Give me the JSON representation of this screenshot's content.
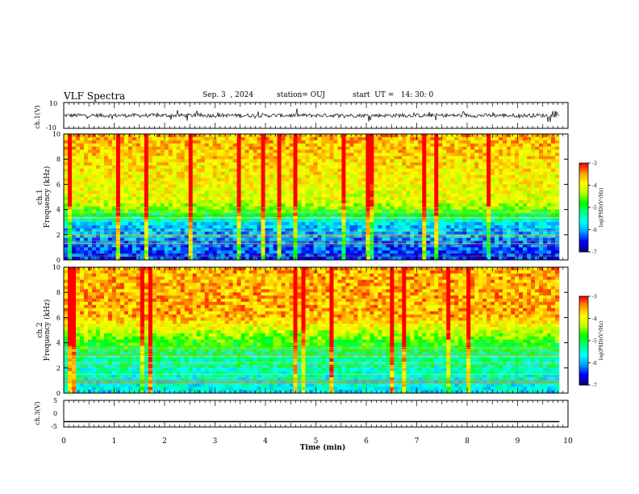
{
  "header": {
    "title": "VLF Spectra",
    "date": "Sep. 3  , 2024",
    "station": "station= OUJ",
    "start_ut": "start  UT =   14: 30: 0"
  },
  "chart_data": [
    {
      "type": "line",
      "panel": "ch1-waveform",
      "ylabel": "ch.1(V)",
      "ylim": [
        -10,
        10
      ],
      "yticks": [
        "10",
        "-10"
      ],
      "baseline": 0,
      "description_of_series": "noisy waveform around 0 V"
    },
    {
      "type": "heatmap",
      "panel": "ch1-spectrogram",
      "ylabel_lines": [
        "ch.1",
        "Frequency  (kHz)"
      ],
      "ylim": [
        0,
        10
      ],
      "yticks": [
        "0",
        "2",
        "4",
        "6",
        "8",
        "10"
      ],
      "colorbar": {
        "label": "log(PSD)(V²/Hz)",
        "range": [
          -7,
          -3
        ],
        "ticks": [
          "-3",
          "-4",
          "-5",
          "-6",
          "-7"
        ]
      }
    },
    {
      "type": "heatmap",
      "panel": "ch2-spectrogram",
      "ylabel_lines": [
        "ch.2",
        "Frequency  (kHz)"
      ],
      "ylim": [
        0,
        10
      ],
      "yticks": [
        "0",
        "2",
        "4",
        "6",
        "8",
        "10"
      ],
      "colorbar": {
        "label": "log(PSD)(V²/Hz)",
        "range": [
          -7,
          -3
        ],
        "ticks": [
          "-3",
          "-4",
          "-5",
          "-6",
          "-7"
        ]
      }
    },
    {
      "type": "line",
      "panel": "ch3-waveform",
      "ylabel": "ch.3(V)",
      "ylim": [
        -5,
        5
      ],
      "yticks": [
        "5",
        "0",
        "-5"
      ],
      "x": [
        0,
        9.83
      ],
      "y": [
        -3,
        -3
      ]
    }
  ],
  "xaxis": {
    "label": "Time  (min)",
    "xlim": [
      0,
      10
    ],
    "ticks": [
      "0",
      "1",
      "2",
      "3",
      "4",
      "5",
      "6",
      "7",
      "8",
      "9",
      "10"
    ]
  },
  "colors": {
    "colormap": [
      "#000080",
      "#0000ff",
      "#00a0ff",
      "#00ffff",
      "#00ff80",
      "#00ff00",
      "#c0ff00",
      "#ffff00",
      "#ffa000",
      "#ff0000",
      "#ffffff"
    ]
  }
}
